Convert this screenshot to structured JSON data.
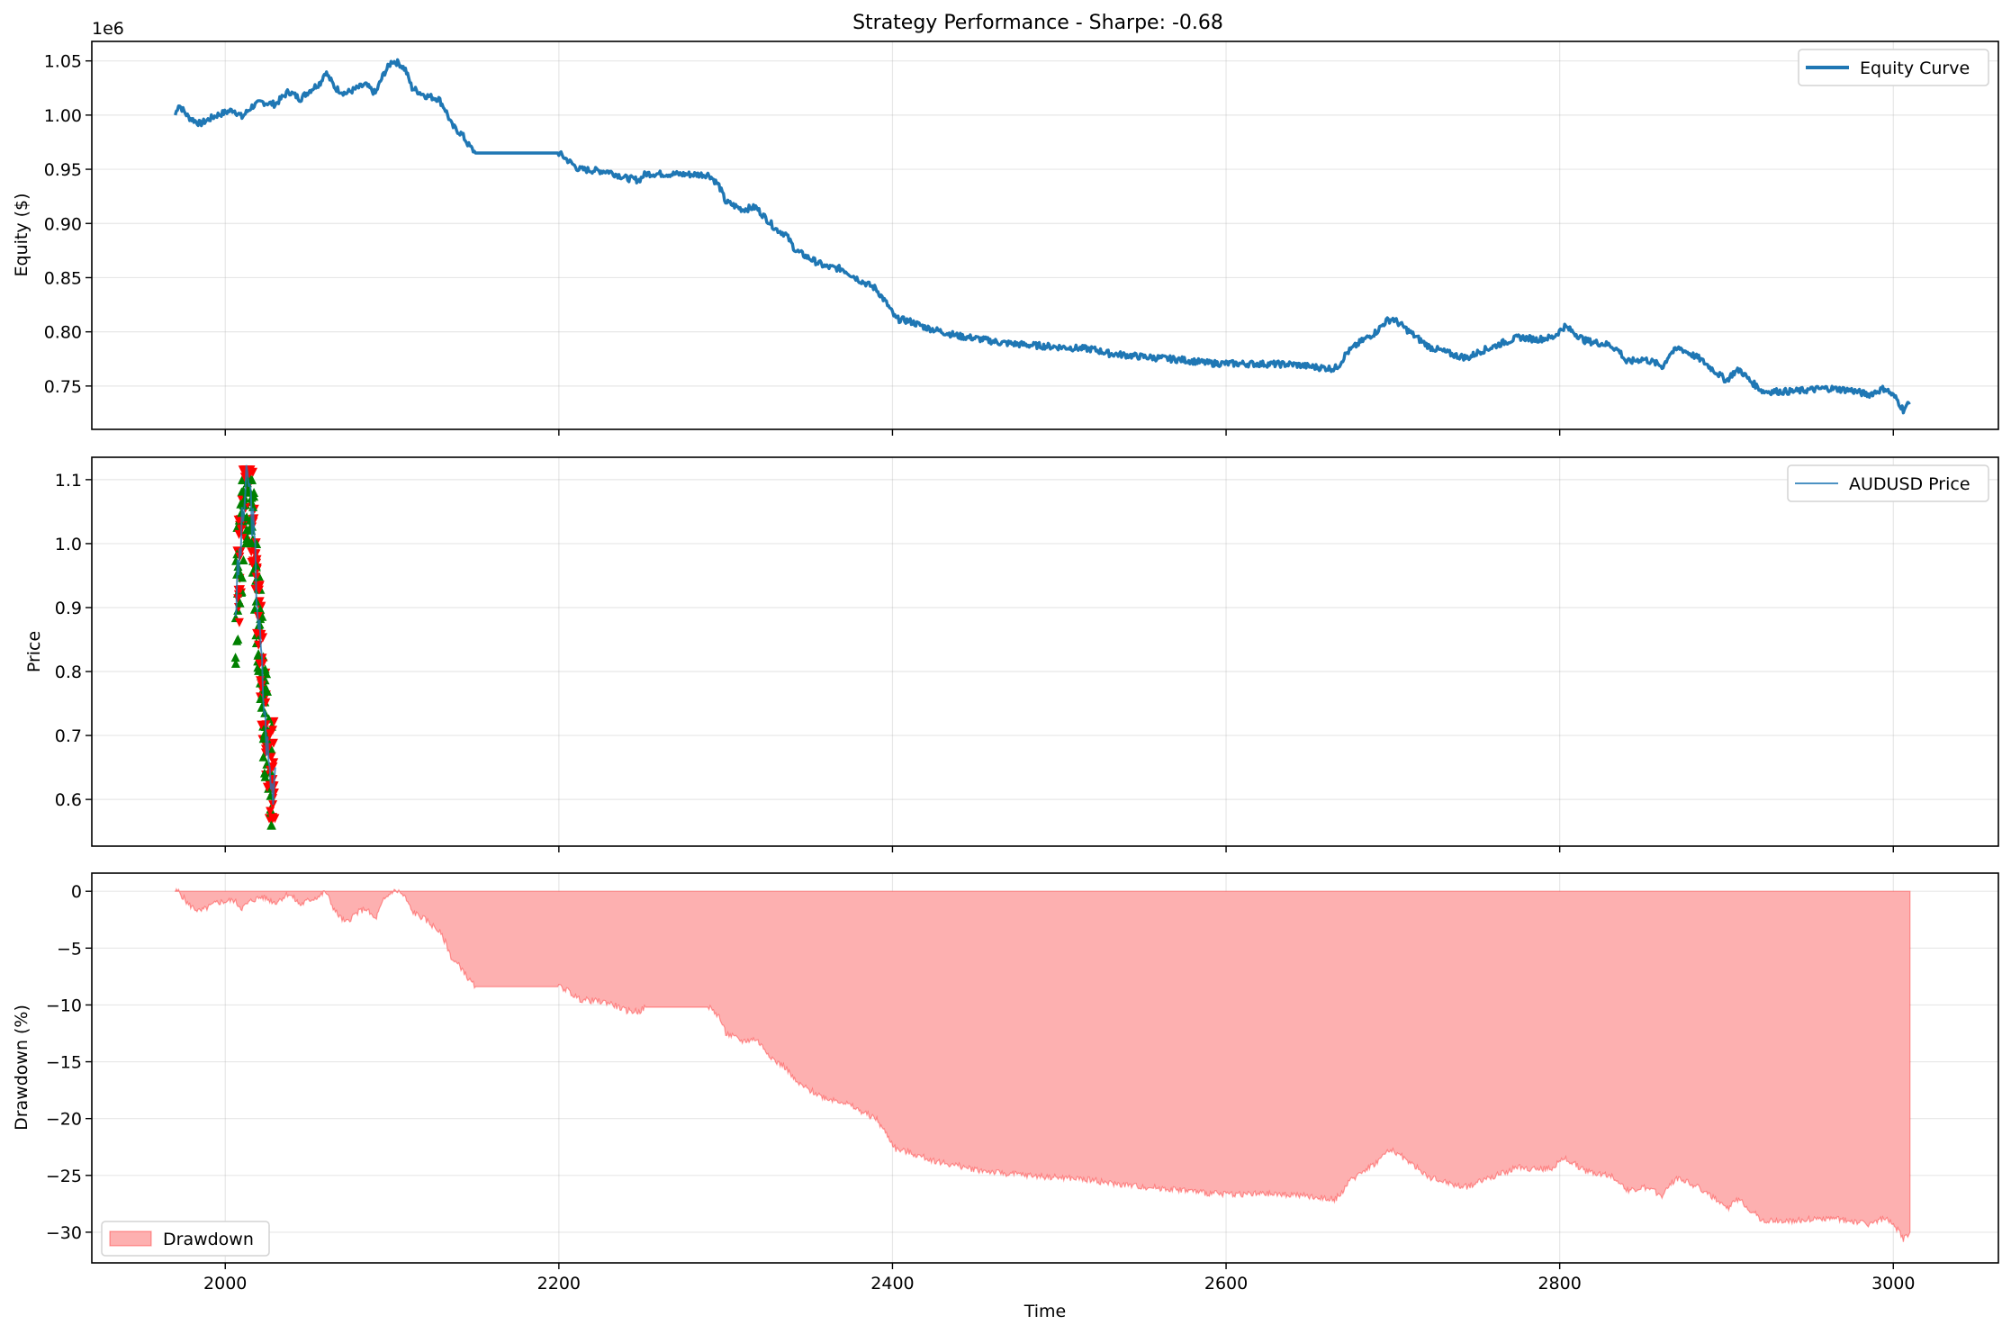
{
  "figure": {
    "title": "Strategy Performance - Sharpe: -0.68",
    "xlabel": "Time"
  },
  "chart_data": [
    {
      "type": "line",
      "id": "equity",
      "ylabel": "Equity ($)",
      "offset_text": "1e6",
      "xlim": [
        1920,
        3063
      ],
      "ylim": [
        0.71,
        1.068
      ],
      "yticks": [
        0.75,
        0.8,
        0.85,
        0.9,
        0.95,
        1.0,
        1.05
      ],
      "ytick_labels": [
        "0.75",
        "0.80",
        "0.85",
        "0.90",
        "0.95",
        "1.00",
        "1.05"
      ],
      "xticks": [
        2000,
        2200,
        2400,
        2600,
        2800,
        3000
      ],
      "grid": true,
      "legend_position": "upper right",
      "series": [
        {
          "name": "Equity Curve",
          "color": "#1f77b4",
          "points": [
            [
              1970,
              1.0
            ],
            [
              1972,
              1.01
            ],
            [
              1978,
              0.998
            ],
            [
              1985,
              0.992
            ],
            [
              1995,
              1.0
            ],
            [
              2005,
              1.005
            ],
            [
              2010,
              0.998
            ],
            [
              2016,
              1.008
            ],
            [
              2022,
              1.012
            ],
            [
              2030,
              1.01
            ],
            [
              2038,
              1.022
            ],
            [
              2045,
              1.015
            ],
            [
              2050,
              1.022
            ],
            [
              2057,
              1.03
            ],
            [
              2060,
              1.04
            ],
            [
              2066,
              1.025
            ],
            [
              2072,
              1.02
            ],
            [
              2078,
              1.024
            ],
            [
              2084,
              1.028
            ],
            [
              2090,
              1.02
            ],
            [
              2095,
              1.038
            ],
            [
              2100,
              1.05
            ],
            [
              2104,
              1.048
            ],
            [
              2108,
              1.042
            ],
            [
              2112,
              1.025
            ],
            [
              2120,
              1.018
            ],
            [
              2128,
              1.015
            ],
            [
              2132,
              1.005
            ],
            [
              2136,
              0.99
            ],
            [
              2142,
              0.982
            ],
            [
              2146,
              0.972
            ],
            [
              2150,
              0.965
            ],
            [
              2200,
              0.965
            ],
            [
              2204,
              0.96
            ],
            [
              2212,
              0.95
            ],
            [
              2230,
              0.948
            ],
            [
              2240,
              0.942
            ],
            [
              2248,
              0.94
            ],
            [
              2252,
              0.946
            ],
            [
              2290,
              0.945
            ],
            [
              2296,
              0.935
            ],
            [
              2300,
              0.92
            ],
            [
              2310,
              0.913
            ],
            [
              2318,
              0.915
            ],
            [
              2324,
              0.905
            ],
            [
              2330,
              0.895
            ],
            [
              2336,
              0.89
            ],
            [
              2342,
              0.875
            ],
            [
              2350,
              0.868
            ],
            [
              2360,
              0.86
            ],
            [
              2370,
              0.858
            ],
            [
              2380,
              0.848
            ],
            [
              2390,
              0.84
            ],
            [
              2397,
              0.825
            ],
            [
              2402,
              0.812
            ],
            [
              2410,
              0.81
            ],
            [
              2420,
              0.804
            ],
            [
              2430,
              0.8
            ],
            [
              2440,
              0.796
            ],
            [
              2450,
              0.794
            ],
            [
              2465,
              0.79
            ],
            [
              2480,
              0.788
            ],
            [
              2500,
              0.786
            ],
            [
              2520,
              0.784
            ],
            [
              2530,
              0.78
            ],
            [
              2550,
              0.777
            ],
            [
              2575,
              0.774
            ],
            [
              2590,
              0.771
            ],
            [
              2640,
              0.77
            ],
            [
              2650,
              0.768
            ],
            [
              2665,
              0.766
            ],
            [
              2668,
              0.77
            ],
            [
              2672,
              0.78
            ],
            [
              2680,
              0.79
            ],
            [
              2690,
              0.8
            ],
            [
              2696,
              0.81
            ],
            [
              2700,
              0.812
            ],
            [
              2706,
              0.805
            ],
            [
              2714,
              0.795
            ],
            [
              2722,
              0.786
            ],
            [
              2730,
              0.782
            ],
            [
              2738,
              0.778
            ],
            [
              2745,
              0.776
            ],
            [
              2752,
              0.782
            ],
            [
              2758,
              0.785
            ],
            [
              2766,
              0.79
            ],
            [
              2776,
              0.795
            ],
            [
              2786,
              0.793
            ],
            [
              2796,
              0.795
            ],
            [
              2803,
              0.805
            ],
            [
              2808,
              0.8
            ],
            [
              2815,
              0.792
            ],
            [
              2822,
              0.79
            ],
            [
              2830,
              0.788
            ],
            [
              2836,
              0.782
            ],
            [
              2840,
              0.772
            ],
            [
              2850,
              0.775
            ],
            [
              2856,
              0.772
            ],
            [
              2862,
              0.768
            ],
            [
              2866,
              0.78
            ],
            [
              2872,
              0.785
            ],
            [
              2878,
              0.78
            ],
            [
              2884,
              0.775
            ],
            [
              2892,
              0.765
            ],
            [
              2900,
              0.755
            ],
            [
              2904,
              0.762
            ],
            [
              2908,
              0.765
            ],
            [
              2914,
              0.755
            ],
            [
              2922,
              0.745
            ],
            [
              2940,
              0.745
            ],
            [
              2960,
              0.748
            ],
            [
              2975,
              0.746
            ],
            [
              2985,
              0.742
            ],
            [
              2995,
              0.748
            ],
            [
              3002,
              0.738
            ],
            [
              3006,
              0.728
            ],
            [
              3010,
              0.735
            ]
          ]
        }
      ]
    },
    {
      "type": "line",
      "id": "price",
      "ylabel": "Price",
      "xlim": [
        1920,
        3063
      ],
      "ylim": [
        0.527,
        1.135
      ],
      "yticks": [
        0.6,
        0.7,
        0.8,
        0.9,
        1.0,
        1.1
      ],
      "ytick_labels": [
        "0.6",
        "0.7",
        "0.8",
        "0.9",
        "1.0",
        "1.1"
      ],
      "xticks": [
        2000,
        2200,
        2400,
        2600,
        2800,
        3000
      ],
      "grid": true,
      "legend_position": "upper right",
      "series": [
        {
          "name": "AUDUSD Price",
          "color": "#1f77b4",
          "points": [
            [
              2006,
              0.9
            ],
            [
              2008,
              0.96
            ],
            [
              2010,
              1.02
            ],
            [
              2012,
              1.08
            ],
            [
              2014,
              1.1
            ],
            [
              2016,
              1.05
            ],
            [
              2018,
              0.97
            ],
            [
              2020,
              0.88
            ],
            [
              2022,
              0.8
            ],
            [
              2024,
              0.72
            ],
            [
              2026,
              0.66
            ],
            [
              2028,
              0.62
            ],
            [
              2030,
              0.65
            ]
          ]
        }
      ],
      "markers": {
        "buy_color": "#008000",
        "sell_color": "#ff0000",
        "buy_x_range": [
          2006,
          2028
        ],
        "sell_x_range": [
          2007,
          2030
        ],
        "buy_y_range": [
          0.56,
          1.1
        ],
        "sell_y_range": [
          0.57,
          1.115
        ]
      }
    },
    {
      "type": "area",
      "id": "drawdown",
      "ylabel": "Drawdown (%)",
      "xlim": [
        1920,
        3063
      ],
      "ylim": [
        -32.7,
        1.6
      ],
      "yticks": [
        -30,
        -25,
        -20,
        -15,
        -10,
        -5,
        0
      ],
      "ytick_labels": [
        "−30",
        "−25",
        "−20",
        "−15",
        "−10",
        "−5",
        "0"
      ],
      "xticks": [
        2000,
        2200,
        2400,
        2600,
        2800,
        3000
      ],
      "xtick_labels": [
        "2000",
        "2200",
        "2400",
        "2600",
        "2800",
        "3000"
      ],
      "grid": true,
      "legend_position": "lower left",
      "series": [
        {
          "name": "Drawdown",
          "color": "#ff0000",
          "fill": "#fdb0b0",
          "points": [
            [
              1970,
              0
            ],
            [
              1972,
              0
            ],
            [
              1978,
              -1.2
            ],
            [
              1985,
              -1.8
            ],
            [
              1995,
              -1.0
            ],
            [
              2005,
              -0.8
            ],
            [
              2010,
              -1.5
            ],
            [
              2016,
              -0.8
            ],
            [
              2022,
              -0.5
            ],
            [
              2030,
              -1.0
            ],
            [
              2038,
              -0.2
            ],
            [
              2045,
              -1.2
            ],
            [
              2050,
              -0.8
            ],
            [
              2057,
              -0.4
            ],
            [
              2060,
              0
            ],
            [
              2066,
              -1.8
            ],
            [
              2072,
              -2.8
            ],
            [
              2078,
              -2.0
            ],
            [
              2084,
              -1.5
            ],
            [
              2090,
              -2.5
            ],
            [
              2095,
              -0.8
            ],
            [
              2100,
              0
            ],
            [
              2104,
              0
            ],
            [
              2108,
              -0.6
            ],
            [
              2112,
              -1.8
            ],
            [
              2120,
              -2.5
            ],
            [
              2128,
              -3.5
            ],
            [
              2132,
              -4.5
            ],
            [
              2136,
              -6.0
            ],
            [
              2142,
              -6.8
            ],
            [
              2146,
              -7.8
            ],
            [
              2150,
              -8.4
            ],
            [
              2200,
              -8.4
            ],
            [
              2204,
              -8.6
            ],
            [
              2212,
              -9.5
            ],
            [
              2230,
              -9.8
            ],
            [
              2240,
              -10.5
            ],
            [
              2248,
              -10.6
            ],
            [
              2252,
              -10.2
            ],
            [
              2290,
              -10.2
            ],
            [
              2296,
              -11.0
            ],
            [
              2300,
              -12.5
            ],
            [
              2310,
              -13.2
            ],
            [
              2318,
              -13.0
            ],
            [
              2324,
              -14.0
            ],
            [
              2330,
              -15.0
            ],
            [
              2336,
              -15.5
            ],
            [
              2342,
              -16.8
            ],
            [
              2350,
              -17.5
            ],
            [
              2360,
              -18.2
            ],
            [
              2370,
              -18.5
            ],
            [
              2380,
              -19.3
            ],
            [
              2390,
              -20.0
            ],
            [
              2397,
              -21.5
            ],
            [
              2402,
              -22.7
            ],
            [
              2410,
              -23.0
            ],
            [
              2420,
              -23.5
            ],
            [
              2430,
              -23.9
            ],
            [
              2440,
              -24.2
            ],
            [
              2450,
              -24.5
            ],
            [
              2465,
              -24.8
            ],
            [
              2480,
              -25.0
            ],
            [
              2500,
              -25.2
            ],
            [
              2520,
              -25.4
            ],
            [
              2530,
              -25.7
            ],
            [
              2550,
              -26.0
            ],
            [
              2575,
              -26.3
            ],
            [
              2590,
              -26.6
            ],
            [
              2640,
              -26.7
            ],
            [
              2650,
              -26.9
            ],
            [
              2665,
              -27.1
            ],
            [
              2668,
              -26.8
            ],
            [
              2672,
              -25.9
            ],
            [
              2680,
              -24.8
            ],
            [
              2690,
              -23.9
            ],
            [
              2696,
              -23.0
            ],
            [
              2700,
              -22.8
            ],
            [
              2706,
              -23.4
            ],
            [
              2714,
              -24.3
            ],
            [
              2722,
              -25.2
            ],
            [
              2730,
              -25.5
            ],
            [
              2738,
              -25.9
            ],
            [
              2745,
              -26.0
            ],
            [
              2752,
              -25.5
            ],
            [
              2758,
              -25.2
            ],
            [
              2766,
              -24.8
            ],
            [
              2776,
              -24.3
            ],
            [
              2786,
              -24.5
            ],
            [
              2796,
              -24.3
            ],
            [
              2803,
              -23.5
            ],
            [
              2808,
              -23.9
            ],
            [
              2815,
              -24.6
            ],
            [
              2822,
              -24.8
            ],
            [
              2830,
              -25.0
            ],
            [
              2836,
              -25.5
            ],
            [
              2840,
              -26.4
            ],
            [
              2850,
              -26.1
            ],
            [
              2856,
              -26.4
            ],
            [
              2862,
              -26.8
            ],
            [
              2866,
              -25.7
            ],
            [
              2872,
              -25.2
            ],
            [
              2878,
              -25.7
            ],
            [
              2884,
              -26.1
            ],
            [
              2892,
              -27.0
            ],
            [
              2900,
              -28.0
            ],
            [
              2904,
              -27.4
            ],
            [
              2908,
              -27.1
            ],
            [
              2914,
              -28.0
            ],
            [
              2922,
              -29.0
            ],
            [
              2940,
              -29.0
            ],
            [
              2960,
              -28.8
            ],
            [
              2975,
              -29.0
            ],
            [
              2985,
              -29.3
            ],
            [
              2995,
              -28.8
            ],
            [
              3002,
              -29.7
            ],
            [
              3006,
              -30.6
            ],
            [
              3010,
              -30.0
            ],
            [
              3010,
              0
            ]
          ]
        }
      ]
    }
  ]
}
